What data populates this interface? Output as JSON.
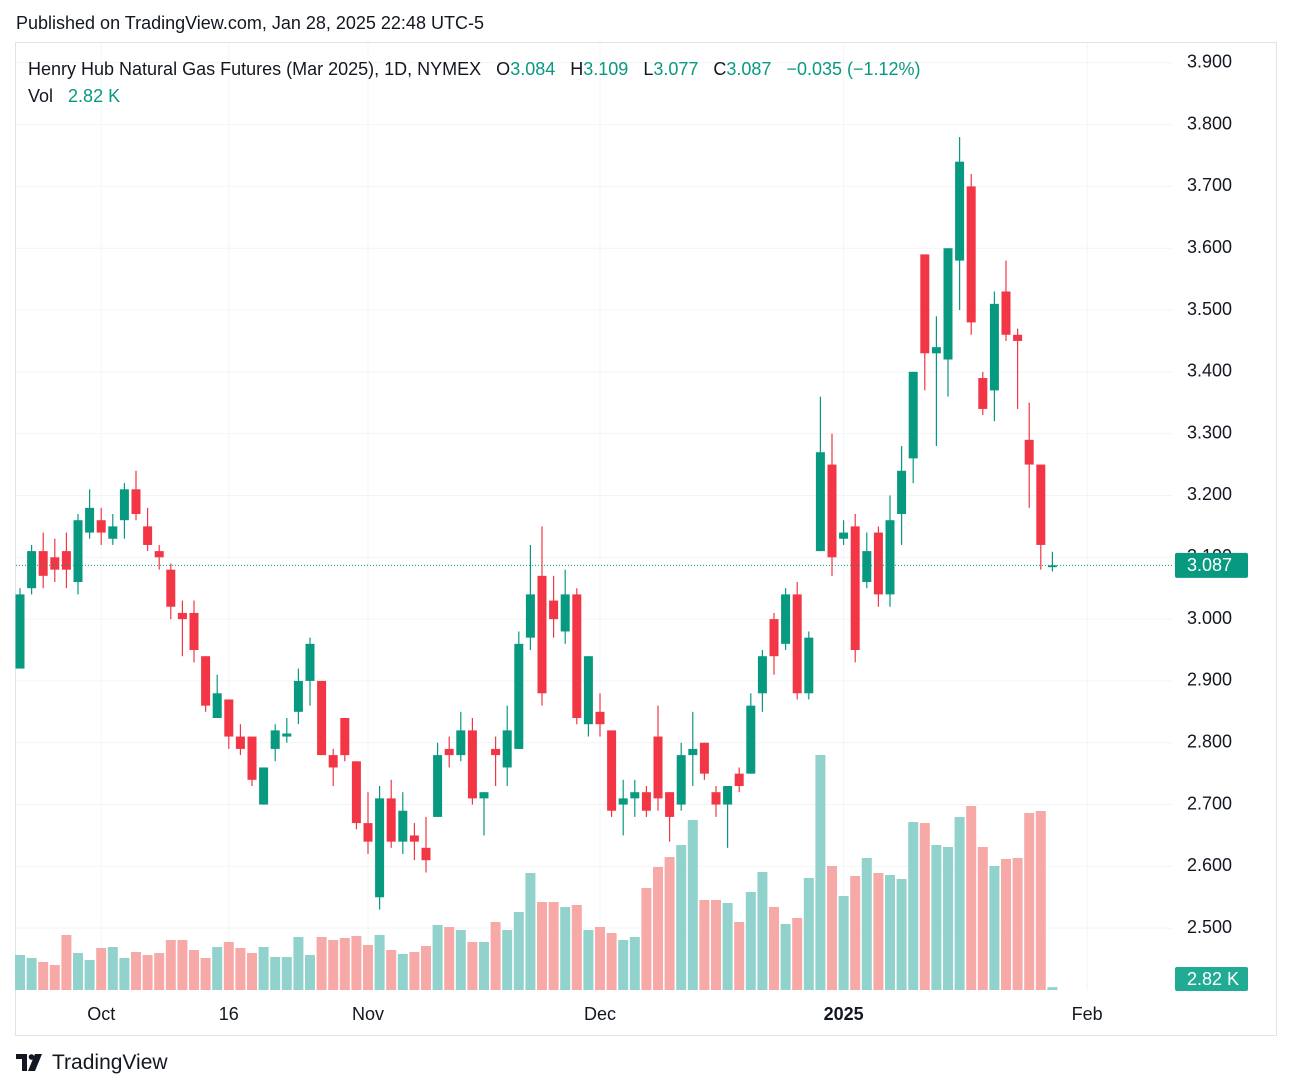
{
  "published": "Published on TradingView.com, Jan 28, 2025 22:48 UTC-5",
  "footer": "TradingView",
  "chart_data": {
    "type": "candlestick",
    "title": "Henry Hub Natural Gas Futures (Mar 2025), 1D, NYMEX",
    "ohlc_labels": [
      "O",
      "H",
      "L",
      "C"
    ],
    "change": "−0.035 (−1.12%)",
    "volume_name": "Vol",
    "volume_label": "2.82 K",
    "up_color": "#089981",
    "down_color": "#f23645",
    "volume_up_color": "#92d2cc",
    "volume_down_color": "#f7a9a7",
    "open": [
      2.92,
      3.05,
      3.11,
      3.1,
      3.11,
      3.06,
      3.14,
      3.16,
      3.13,
      3.16,
      3.21,
      3.15,
      3.11,
      3.08,
      3.01,
      3.01,
      2.94,
      2.84,
      2.87,
      2.81,
      2.81,
      2.7,
      2.79,
      2.81,
      2.85,
      2.9,
      2.9,
      2.78,
      2.84,
      2.77,
      2.67,
      2.55,
      2.71,
      2.64,
      2.65,
      2.63,
      2.68,
      2.79,
      2.78,
      2.82,
      2.71,
      2.79,
      2.76,
      2.79,
      2.97,
      3.07,
      3.03,
      2.98,
      3.04,
      2.83,
      2.85,
      2.82,
      2.7,
      2.71,
      2.72,
      2.81,
      2.72,
      2.7,
      2.78,
      2.8,
      2.72,
      2.7,
      2.75,
      2.75,
      2.88,
      3.0,
      2.96,
      3.04,
      2.88,
      3.11,
      3.25,
      3.13,
      3.15,
      3.06,
      3.14,
      3.04,
      3.17,
      3.26,
      3.59,
      3.43,
      3.42,
      3.58,
      3.7,
      3.39,
      3.37,
      3.53,
      3.46,
      3.29,
      3.25,
      3.084
    ],
    "high": [
      3.05,
      3.12,
      3.14,
      3.13,
      3.14,
      3.17,
      3.21,
      3.18,
      3.17,
      3.22,
      3.24,
      3.18,
      3.12,
      3.09,
      3.03,
      3.03,
      2.94,
      2.91,
      2.87,
      2.83,
      2.81,
      2.76,
      2.83,
      2.84,
      2.92,
      2.97,
      2.9,
      2.79,
      2.84,
      2.77,
      2.72,
      2.73,
      2.74,
      2.72,
      2.67,
      2.68,
      2.8,
      2.81,
      2.85,
      2.84,
      2.72,
      2.81,
      2.86,
      2.98,
      3.12,
      3.15,
      3.07,
      3.08,
      3.05,
      2.94,
      2.88,
      2.82,
      2.74,
      2.74,
      2.73,
      2.86,
      2.72,
      2.8,
      2.85,
      2.8,
      2.73,
      2.73,
      2.76,
      2.88,
      2.95,
      3.01,
      3.05,
      3.06,
      2.98,
      3.36,
      3.3,
      3.16,
      3.17,
      3.14,
      3.15,
      3.2,
      3.28,
      3.4,
      3.59,
      3.49,
      3.6,
      3.78,
      3.72,
      3.4,
      3.53,
      3.58,
      3.47,
      3.35,
      3.25,
      3.109
    ],
    "low": [
      2.92,
      3.04,
      3.05,
      3.06,
      3.05,
      3.04,
      3.13,
      3.12,
      3.12,
      3.13,
      3.16,
      3.11,
      3.08,
      3.0,
      2.94,
      2.93,
      2.85,
      2.84,
      2.79,
      2.78,
      2.73,
      2.7,
      2.77,
      2.8,
      2.83,
      2.86,
      2.78,
      2.73,
      2.77,
      2.66,
      2.62,
      2.53,
      2.63,
      2.62,
      2.61,
      2.59,
      2.68,
      2.76,
      2.77,
      2.7,
      2.65,
      2.73,
      2.73,
      2.79,
      2.95,
      2.86,
      2.97,
      2.96,
      2.83,
      2.81,
      2.81,
      2.68,
      2.65,
      2.68,
      2.68,
      2.69,
      2.64,
      2.69,
      2.73,
      2.74,
      2.68,
      2.63,
      2.72,
      2.75,
      2.85,
      2.91,
      2.95,
      2.87,
      2.87,
      3.11,
      3.07,
      3.12,
      2.93,
      3.05,
      3.02,
      3.02,
      3.12,
      3.22,
      3.37,
      3.28,
      3.36,
      3.5,
      3.46,
      3.33,
      3.32,
      3.45,
      3.34,
      3.18,
      3.08,
      3.077
    ],
    "close": [
      3.04,
      3.11,
      3.07,
      3.08,
      3.08,
      3.16,
      3.18,
      3.14,
      3.15,
      3.21,
      3.17,
      3.12,
      3.1,
      3.02,
      3.0,
      2.95,
      2.86,
      2.88,
      2.81,
      2.79,
      2.74,
      2.76,
      2.82,
      2.815,
      2.9,
      2.96,
      2.78,
      2.76,
      2.78,
      2.67,
      2.64,
      2.71,
      2.64,
      2.69,
      2.64,
      2.61,
      2.78,
      2.78,
      2.82,
      2.71,
      2.72,
      2.78,
      2.82,
      2.96,
      3.04,
      2.88,
      3.0,
      3.04,
      2.84,
      2.94,
      2.83,
      2.69,
      2.71,
      2.72,
      2.69,
      2.71,
      2.68,
      2.78,
      2.79,
      2.75,
      2.7,
      2.73,
      2.73,
      2.86,
      2.94,
      2.94,
      3.04,
      2.88,
      2.97,
      3.27,
      3.1,
      3.14,
      2.95,
      3.11,
      3.04,
      3.16,
      3.24,
      3.4,
      3.43,
      3.44,
      3.6,
      3.74,
      3.48,
      3.34,
      3.51,
      3.46,
      3.45,
      3.25,
      3.12,
      3.087
    ],
    "volume": [
      35,
      32,
      28,
      25,
      55,
      37,
      30,
      42,
      43,
      32,
      38,
      35,
      37,
      50,
      50,
      40,
      32,
      43,
      48,
      42,
      37,
      43,
      33,
      33,
      53,
      35,
      53,
      50,
      52,
      54,
      45,
      55,
      40,
      36,
      38,
      44,
      65,
      63,
      60,
      48,
      48,
      68,
      60,
      78,
      117,
      88,
      88,
      83,
      85,
      60,
      63,
      57,
      50,
      53,
      102,
      123,
      133,
      145,
      170,
      90,
      90,
      87,
      68,
      98,
      118,
      83,
      66,
      72,
      112,
      235,
      124,
      94,
      114,
      132,
      117,
      115,
      111,
      168,
      167,
      145,
      143,
      173,
      184,
      143,
      124,
      131,
      132,
      177,
      179,
      2.82
    ],
    "ylim": [
      2.4,
      3.932
    ],
    "yticks": [
      {
        "value": 2.5,
        "label": "2.500"
      },
      {
        "value": 2.6,
        "label": "2.600"
      },
      {
        "value": 2.7,
        "label": "2.700"
      },
      {
        "value": 2.8,
        "label": "2.800"
      },
      {
        "value": 2.9,
        "label": "2.900"
      },
      {
        "value": 3.0,
        "label": "3.000"
      },
      {
        "value": 3.1,
        "label": "3.100"
      },
      {
        "value": 3.2,
        "label": "3.200"
      },
      {
        "value": 3.3,
        "label": "3.300"
      },
      {
        "value": 3.4,
        "label": "3.400"
      },
      {
        "value": 3.5,
        "label": "3.500"
      },
      {
        "value": 3.6,
        "label": "3.600"
      },
      {
        "value": 3.7,
        "label": "3.700"
      },
      {
        "value": 3.8,
        "label": "3.800"
      },
      {
        "value": 3.9,
        "label": "3.900"
      }
    ],
    "xticks": [
      {
        "value": 7,
        "label": "Oct"
      },
      {
        "value": 18,
        "label": "16"
      },
      {
        "value": 30,
        "label": "Nov"
      },
      {
        "value": 50,
        "label": "Dec"
      },
      {
        "value": 71,
        "label": "2025"
      },
      {
        "value": 92,
        "label": "Feb"
      }
    ],
    "volume_lim": [
      0,
      300
    ],
    "grid": true
  }
}
